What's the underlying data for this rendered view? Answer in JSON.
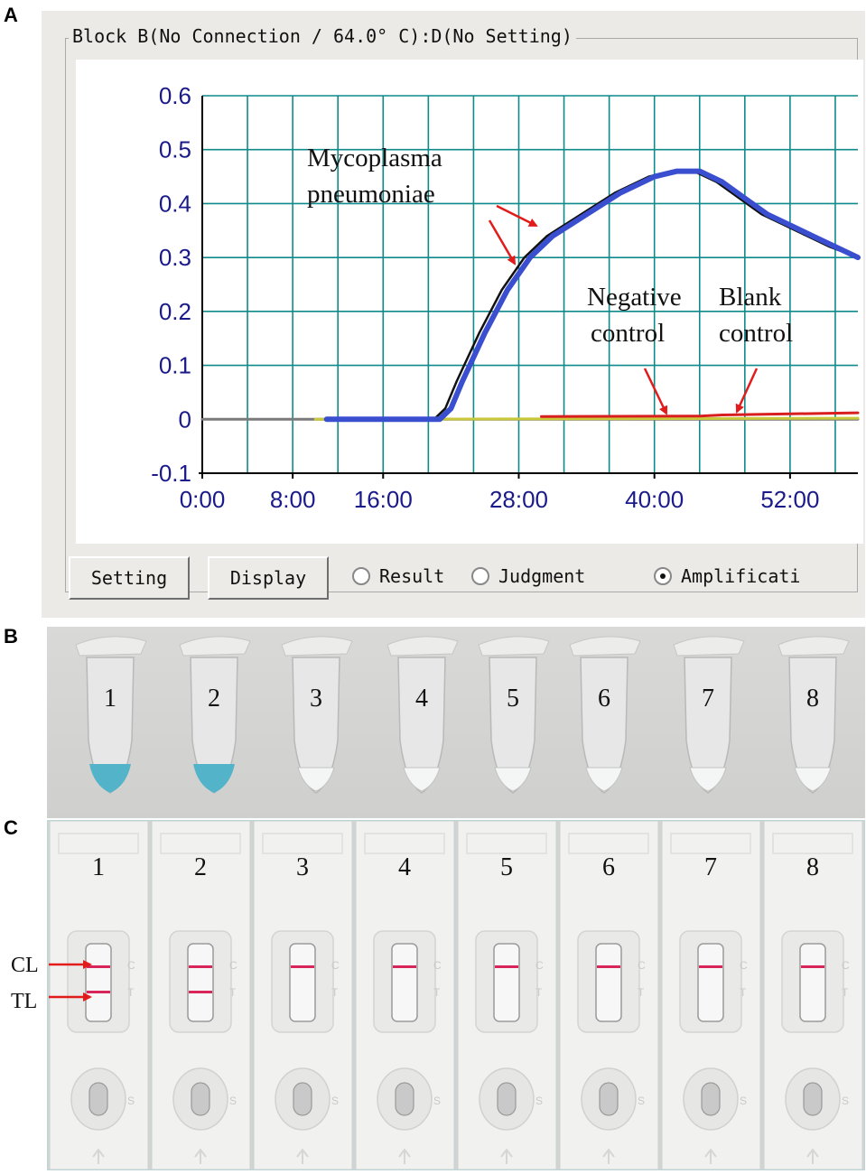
{
  "panels": {
    "a": "A",
    "b": "B",
    "c": "C"
  },
  "window": {
    "group_title": "Block B(No Connection / 64.0° C):D(No Setting)",
    "buttons": {
      "setting": "Setting",
      "display": "Display"
    },
    "radios": [
      {
        "label": "Result",
        "selected": false
      },
      {
        "label": "Judgment",
        "selected": false
      },
      {
        "label": "Amplificati",
        "selected": true
      }
    ]
  },
  "chart_data": {
    "type": "line",
    "ylim": [
      -0.1,
      0.6
    ],
    "yticks": [
      "0.6",
      "0.5",
      "0.4",
      "0.3",
      "0.2",
      "0.1",
      "0",
      "-0.1"
    ],
    "xlim": [
      "0:00",
      "58:00"
    ],
    "xticks": [
      "0:00",
      "8:00",
      "16:00",
      "28:00",
      "40:00",
      "52:00"
    ],
    "grid": true,
    "annotations": [
      {
        "lines": [
          "Mycoplasma",
          "pneumoniae"
        ]
      },
      {
        "lines": [
          "Negative",
          "control"
        ]
      },
      {
        "lines": [
          "Blank",
          "control"
        ]
      }
    ],
    "series": [
      {
        "color": "#3a4fd0",
        "points": [
          [
            11,
            0
          ],
          [
            21,
            0
          ],
          [
            22,
            0.02
          ],
          [
            23,
            0.07
          ],
          [
            25,
            0.16
          ],
          [
            27,
            0.24
          ],
          [
            29,
            0.3
          ],
          [
            31,
            0.34
          ],
          [
            34,
            0.38
          ],
          [
            37,
            0.42
          ],
          [
            40,
            0.45
          ],
          [
            42,
            0.46
          ],
          [
            44,
            0.46
          ],
          [
            46,
            0.44
          ],
          [
            48,
            0.41
          ],
          [
            50,
            0.38
          ],
          [
            52,
            0.36
          ],
          [
            54,
            0.34
          ],
          [
            56,
            0.32
          ],
          [
            58,
            0.3
          ]
        ]
      },
      {
        "color": "#111111",
        "points": [
          [
            11,
            0
          ],
          [
            20.5,
            0
          ],
          [
            21.5,
            0.02
          ],
          [
            22.5,
            0.07
          ],
          [
            24.5,
            0.16
          ],
          [
            26.5,
            0.24
          ],
          [
            28.5,
            0.3
          ],
          [
            30.5,
            0.34
          ],
          [
            33.5,
            0.38
          ],
          [
            36.5,
            0.42
          ],
          [
            39.5,
            0.45
          ],
          [
            41.5,
            0.46
          ],
          [
            43.5,
            0.46
          ],
          [
            45.5,
            0.44
          ],
          [
            47.5,
            0.41
          ],
          [
            49.5,
            0.38
          ],
          [
            51.5,
            0.36
          ],
          [
            53.5,
            0.34
          ],
          [
            55.5,
            0.32
          ],
          [
            58,
            0.3
          ]
        ]
      },
      {
        "color": "#d81e1e",
        "points": [
          [
            30,
            0.005
          ],
          [
            44,
            0.006
          ],
          [
            46,
            0.008
          ],
          [
            52,
            0.01
          ],
          [
            58,
            0.012
          ]
        ]
      },
      {
        "color": "#c8c83a",
        "points": [
          [
            10,
            0
          ],
          [
            58,
            0.002
          ]
        ]
      },
      {
        "color": "#7a7a7a",
        "points": [
          [
            0,
            0
          ],
          [
            58,
            0
          ]
        ]
      }
    ]
  },
  "tubes": {
    "labels": [
      "1",
      "2",
      "3",
      "4",
      "5",
      "6",
      "7",
      "8"
    ],
    "blue_fill": [
      true,
      true,
      false,
      false,
      false,
      false,
      false,
      false
    ]
  },
  "strips": {
    "labels": [
      "1",
      "2",
      "3",
      "4",
      "5",
      "6",
      "7",
      "8"
    ],
    "control_line": [
      true,
      true,
      true,
      true,
      true,
      true,
      true,
      true
    ],
    "test_line": [
      true,
      true,
      false,
      false,
      false,
      false,
      false,
      false
    ],
    "letters": {
      "c": "C",
      "t": "T",
      "s": "S"
    },
    "callouts": {
      "cl": "CL",
      "tl": "TL"
    }
  }
}
